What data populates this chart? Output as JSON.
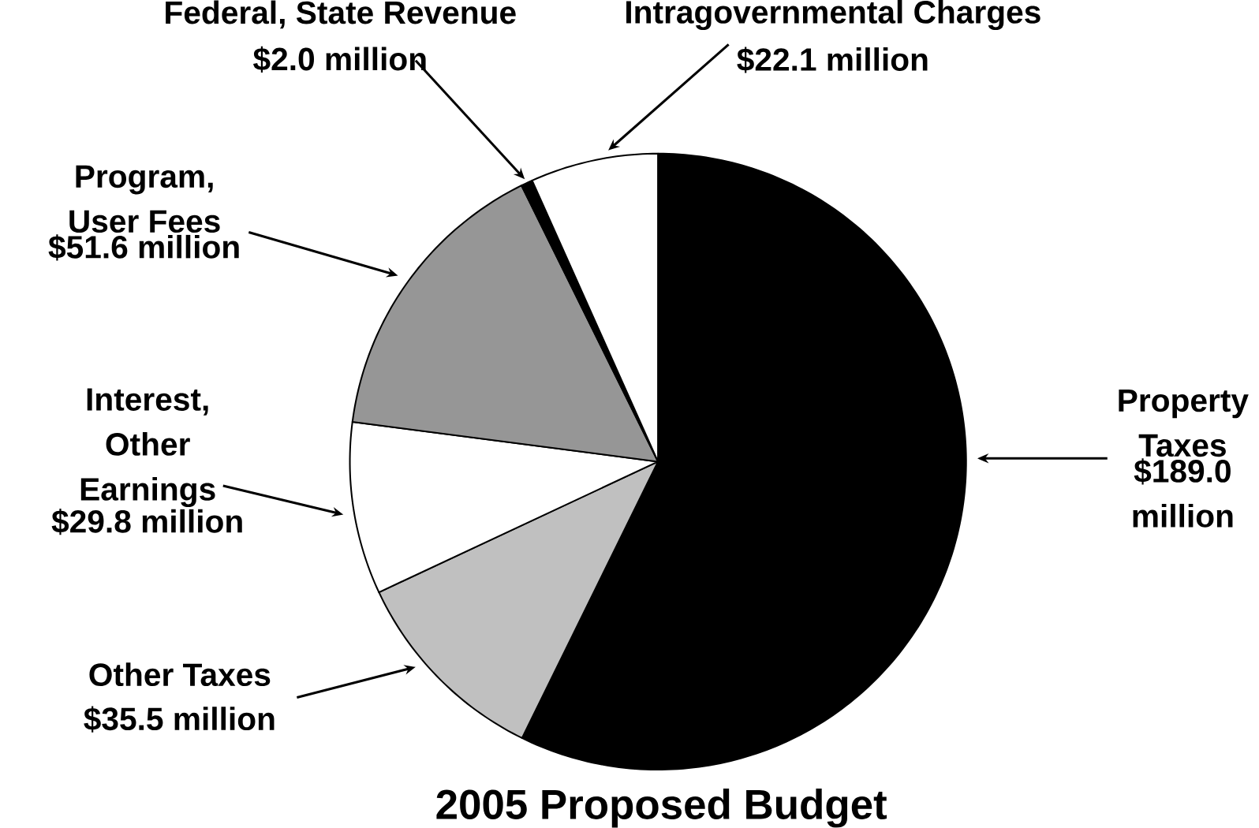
{
  "chart_data": {
    "type": "pie",
    "title": "2005 Proposed Budget",
    "categories": [
      "Property Taxes",
      "Other Taxes",
      "Interest, Other Earnings",
      "Program, User Fees",
      "Federal, State Revenue",
      "Intragovernmental Charges"
    ],
    "values": [
      189.0,
      35.5,
      29.8,
      51.6,
      2.0,
      22.1
    ],
    "value_labels": [
      "$189.0 million",
      "$35.5 million",
      "$29.8 million",
      "$51.6 million",
      "$2.0 million",
      "$22.1 million"
    ],
    "colors": [
      "#000000",
      "#c0c0c0",
      "#ffffff",
      "#969696",
      "#000000",
      "#ffffff"
    ]
  }
}
